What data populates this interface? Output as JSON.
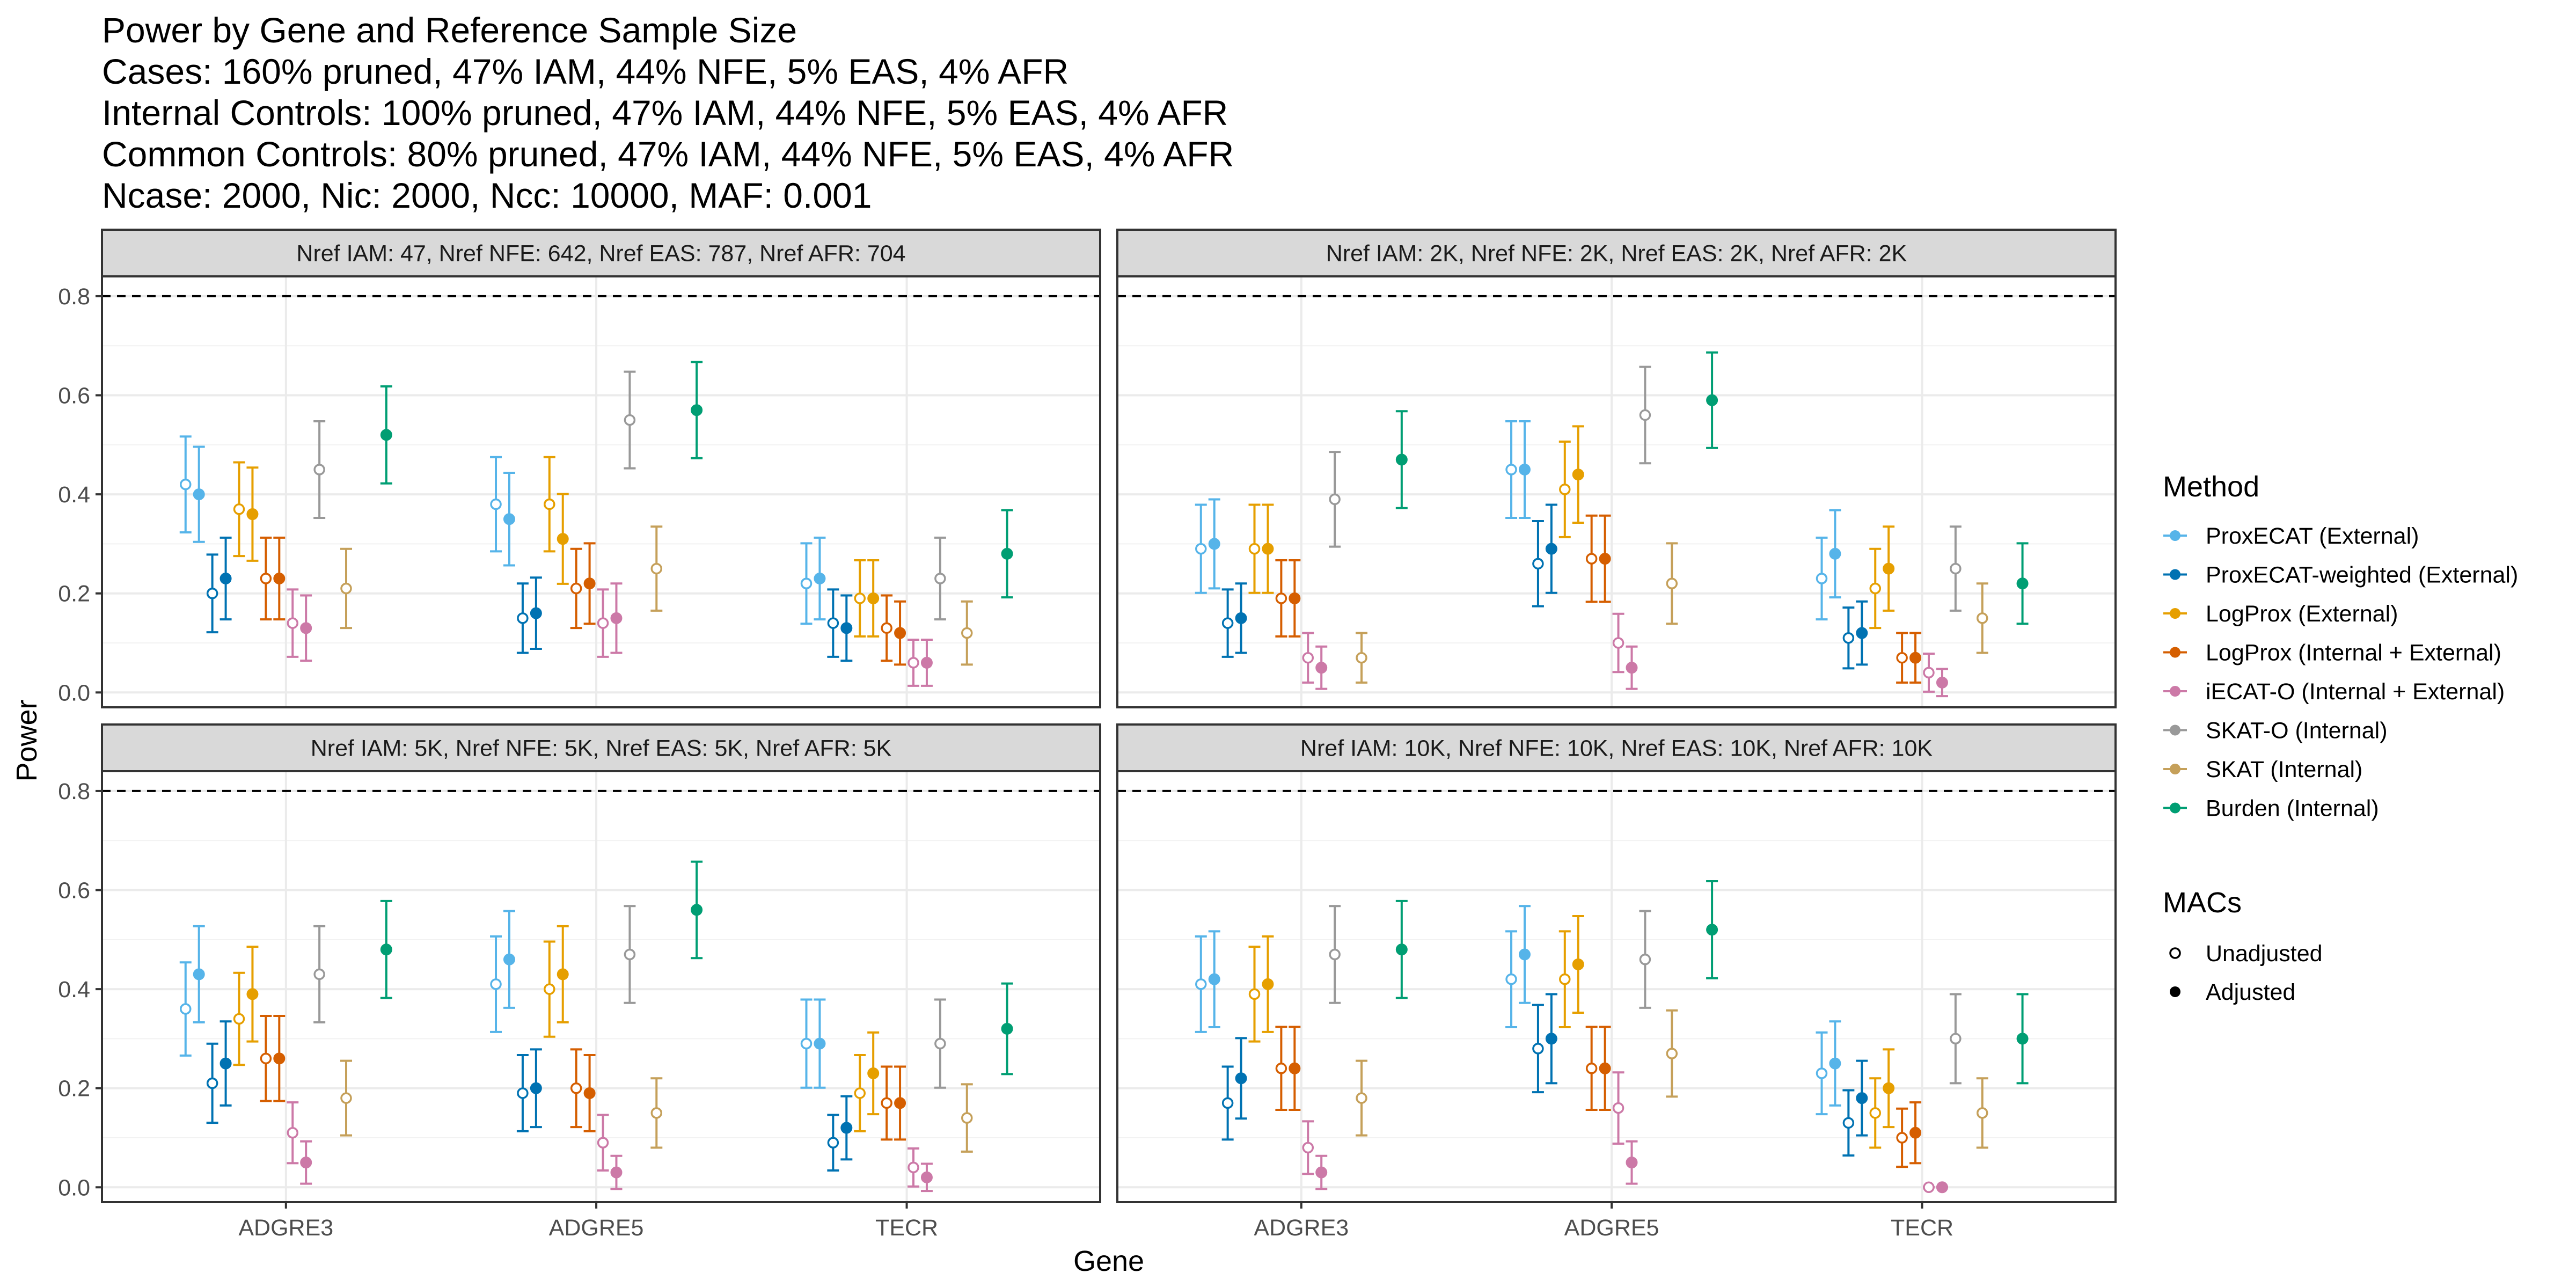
{
  "title_lines": [
    "Power by Gene and Reference Sample Size",
    "Cases: 160% pruned, 47% IAM, 44% NFE, 5% EAS, 4% AFR",
    "Internal Controls: 100% pruned, 47% IAM, 44% NFE, 5% EAS, 4% AFR",
    "Common Controls: 80% pruned, 47% IAM, 44% NFE, 5% EAS, 4% AFR",
    "Ncase: 2000, Nic: 2000, Ncc: 10000, MAF: 0.001"
  ],
  "chart_data": {
    "type": "scatter",
    "subtype": "point-range (errorbar) plot, faceted 2x2",
    "xlabel": "Gene",
    "ylabel": "Power",
    "categories": [
      "ADGRE3",
      "ADGRE5",
      "TECR"
    ],
    "ylim": [
      -0.03,
      0.84
    ],
    "yticks": [
      0.0,
      0.2,
      0.4,
      0.6,
      0.8
    ],
    "ytick_labels": [
      "0.0",
      "0.2",
      "0.4",
      "0.6",
      "0.8"
    ],
    "reference_line": {
      "y": 0.8,
      "style": "dashed"
    },
    "grid": true,
    "legend_position": "right",
    "methods": [
      {
        "name": "ProxECAT (External)",
        "color": "#56B4E9"
      },
      {
        "name": "ProxECAT-weighted (External)",
        "color": "#0072B2"
      },
      {
        "name": "LogProx (External)",
        "color": "#E69F00"
      },
      {
        "name": "LogProx (Internal + External)",
        "color": "#D55E00"
      },
      {
        "name": "iECAT-O (Internal + External)",
        "color": "#CC79A7"
      },
      {
        "name": "SKAT-O (Internal)",
        "color": "#999999"
      },
      {
        "name": "SKAT (Internal)",
        "color": "#C5A05A"
      },
      {
        "name": "Burden (Internal)",
        "color": "#009E73"
      }
    ],
    "legend_methods_title": "Method",
    "legend_macs_title": "MACs",
    "macs": [
      "Unadjusted",
      "Adjusted"
    ],
    "panels": [
      {
        "label": "Nref IAM: 47, Nref NFE: 642, Nref EAS: 787, Nref AFR: 704",
        "unadjusted": [
          [
            0.42,
            0.2,
            0.37,
            0.23,
            0.14,
            0.45,
            0.21,
            null
          ],
          [
            0.38,
            0.15,
            0.38,
            0.21,
            0.14,
            0.55,
            0.25,
            null
          ],
          [
            0.22,
            0.14,
            0.19,
            0.13,
            0.06,
            0.23,
            0.12,
            null
          ]
        ],
        "adjusted": [
          [
            0.4,
            0.23,
            0.36,
            0.23,
            0.13,
            null,
            null,
            0.52
          ],
          [
            0.35,
            0.16,
            0.31,
            0.22,
            0.15,
            null,
            null,
            0.57
          ],
          [
            0.23,
            0.13,
            0.19,
            0.12,
            0.06,
            null,
            null,
            0.28
          ]
        ]
      },
      {
        "label": "Nref IAM: 2K, Nref NFE: 2K, Nref EAS: 2K, Nref AFR: 2K",
        "unadjusted": [
          [
            0.29,
            0.14,
            0.29,
            0.19,
            0.07,
            0.39,
            0.07,
            null
          ],
          [
            0.45,
            0.26,
            0.41,
            0.27,
            0.1,
            0.56,
            0.22,
            null
          ],
          [
            0.23,
            0.11,
            0.21,
            0.07,
            0.04,
            0.25,
            0.15,
            null
          ]
        ],
        "adjusted": [
          [
            0.3,
            0.15,
            0.29,
            0.19,
            0.05,
            null,
            null,
            0.47
          ],
          [
            0.45,
            0.29,
            0.44,
            0.27,
            0.05,
            null,
            null,
            0.59
          ],
          [
            0.28,
            0.12,
            0.25,
            0.07,
            0.02,
            null,
            null,
            0.22
          ]
        ]
      },
      {
        "label": "Nref IAM: 5K, Nref NFE: 5K, Nref EAS: 5K, Nref AFR: 5K",
        "unadjusted": [
          [
            0.36,
            0.21,
            0.34,
            0.26,
            0.11,
            0.43,
            0.18,
            null
          ],
          [
            0.41,
            0.19,
            0.4,
            0.2,
            0.09,
            0.47,
            0.15,
            null
          ],
          [
            0.29,
            0.09,
            0.19,
            0.17,
            0.04,
            0.29,
            0.14,
            null
          ]
        ],
        "adjusted": [
          [
            0.43,
            0.25,
            0.39,
            0.26,
            0.05,
            null,
            null,
            0.48
          ],
          [
            0.46,
            0.2,
            0.43,
            0.19,
            0.03,
            null,
            null,
            0.56
          ],
          [
            0.29,
            0.12,
            0.23,
            0.17,
            0.02,
            null,
            null,
            0.32
          ]
        ]
      },
      {
        "label": "Nref IAM: 10K, Nref NFE: 10K, Nref EAS: 10K, Nref AFR: 10K",
        "unadjusted": [
          [
            0.41,
            0.17,
            0.39,
            0.24,
            0.08,
            0.47,
            0.18,
            null
          ],
          [
            0.42,
            0.28,
            0.42,
            0.24,
            0.16,
            0.46,
            0.27,
            null
          ],
          [
            0.23,
            0.13,
            0.15,
            0.1,
            0.0,
            0.3,
            0.15,
            null
          ]
        ],
        "adjusted": [
          [
            0.42,
            0.22,
            0.41,
            0.24,
            0.03,
            null,
            null,
            0.48
          ],
          [
            0.47,
            0.3,
            0.45,
            0.24,
            0.05,
            null,
            null,
            0.52
          ],
          [
            0.25,
            0.18,
            0.2,
            0.11,
            0.0,
            null,
            null,
            0.3
          ]
        ]
      }
    ]
  }
}
